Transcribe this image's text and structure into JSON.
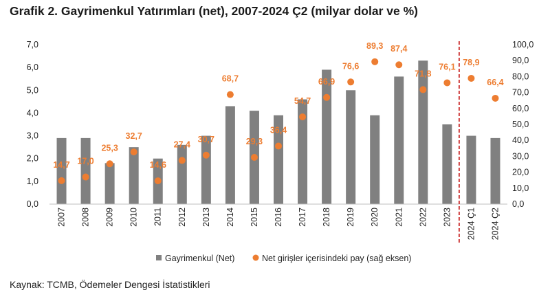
{
  "title": "Grafik 2. Gayrimenkul Yatırımları (net), 2007-2024 Ç2 (milyar dolar ve %)",
  "source": "Kaynak: TCMB, Ödemeler Dengesi İstatistikleri",
  "colors": {
    "bar": "#808080",
    "dot": "#ED7D31",
    "divider": "#C00000"
  },
  "chart_data": {
    "type": "bar",
    "categories": [
      "2007",
      "2008",
      "2009",
      "2010",
      "2011",
      "2012",
      "2013",
      "2014",
      "2015",
      "2016",
      "2017",
      "2018",
      "2019",
      "2020",
      "2021",
      "2022",
      "2023",
      "2024 Ç1",
      "2024 Ç2"
    ],
    "series": [
      {
        "name": "Gayrimenkul (Net)",
        "type": "bar",
        "axis": "left",
        "values": [
          2.9,
          2.9,
          1.8,
          2.5,
          2.0,
          2.6,
          3.0,
          4.3,
          4.1,
          3.9,
          4.6,
          5.9,
          5.0,
          3.9,
          5.6,
          6.3,
          3.5,
          3.0,
          2.9
        ]
      },
      {
        "name": "Net girişler içerisindeki pay (sağ eksen)",
        "type": "scatter",
        "axis": "right",
        "values": [
          14.7,
          17.0,
          25.3,
          32.7,
          14.6,
          27.4,
          30.7,
          68.7,
          29.3,
          36.4,
          54.7,
          66.9,
          76.6,
          89.3,
          87.4,
          71.8,
          76.1,
          78.9,
          66.4
        ],
        "labels": [
          "14,7",
          "17,0",
          "25,3",
          "32,7",
          "14,6",
          "27,4",
          "30,7",
          "68,7",
          "29,3",
          "36,4",
          "54,7",
          "66,9",
          "76,6",
          "89,3",
          "87,4",
          "71,8",
          "76,1",
          "78,9",
          "66,4"
        ]
      }
    ],
    "ylim": [
      0,
      7
    ],
    "y2lim": [
      0,
      100
    ],
    "yticks": [
      "0,0",
      "1,0",
      "2,0",
      "3,0",
      "4,0",
      "5,0",
      "6,0",
      "7,0"
    ],
    "y2ticks": [
      "0,0",
      "10,0",
      "20,0",
      "30,0",
      "40,0",
      "50,0",
      "60,0",
      "70,0",
      "80,0",
      "90,0",
      "100,0"
    ],
    "legend": [
      "Gayrimenkul (Net)",
      "Net girişler içerisindeki pay (sağ eksen)"
    ],
    "legend_position": "bottom",
    "grid": false
  }
}
